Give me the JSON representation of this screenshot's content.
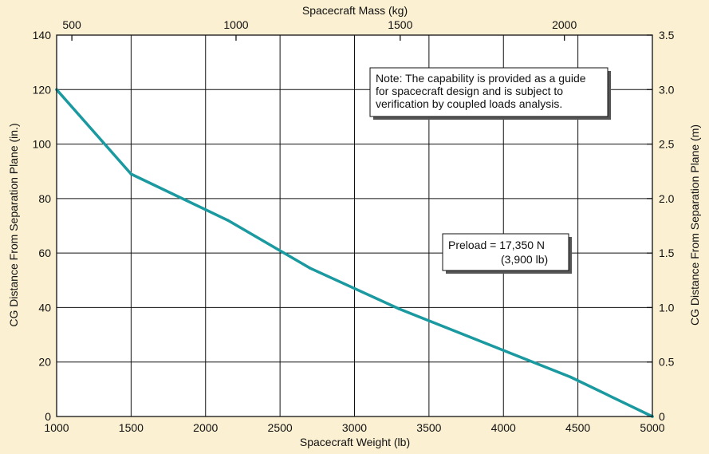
{
  "colors": {
    "background": "#fbf0d2",
    "plot_background": "#ffffff",
    "grid": "#111111",
    "series": "#1a9aa0"
  },
  "chart_data": {
    "type": "line",
    "xlabel": "Spacecraft Weight (lb)",
    "ylabel": "CG Distance From Separation Plane (in.)",
    "xlim": [
      1000,
      5000
    ],
    "ylim": [
      0,
      140
    ],
    "x_ticks": [
      1000,
      1500,
      2000,
      2500,
      3000,
      3500,
      4000,
      4500,
      5000
    ],
    "x_tick_labels": [
      "1000",
      "1500",
      "2000",
      "2500",
      "3000",
      "3500",
      "4000",
      "4500",
      "5000"
    ],
    "y_ticks": [
      0,
      20,
      40,
      60,
      80,
      100,
      120,
      140
    ],
    "y_tick_labels": [
      "0",
      "20",
      "40",
      "60",
      "80",
      "100",
      "120",
      "140"
    ],
    "x2label": "Spacecraft Mass (kg)",
    "x2_ticks": [
      500,
      1000,
      1500,
      2000
    ],
    "x2_tick_labels": [
      "500",
      "1000",
      "1500",
      "2000"
    ],
    "y2label": "CG Distance From Separation Plane (m)",
    "y2_ticks": [
      0,
      0.5,
      1.0,
      1.5,
      2.0,
      2.5,
      3.0,
      3.5
    ],
    "y2_tick_labels": [
      "0",
      "0.5",
      "1.0",
      "1.5",
      "2.0",
      "2.5",
      "3.0",
      "3.5"
    ],
    "grid": true,
    "series": [
      {
        "x": [
          1000,
          1500,
          2150,
          2700,
          3300,
          4450,
          5000
        ],
        "y": [
          120,
          89,
          72,
          54.5,
          39.5,
          14.5,
          0
        ]
      }
    ],
    "annotations": [
      {
        "id": "note",
        "lines": [
          "Note: The capability is provided as a guide",
          "for spacecraft design and is subject to",
          "verification by coupled loads analysis."
        ]
      },
      {
        "id": "preload",
        "lines": [
          "Preload = 17,350 N",
          "(3,900 lb)"
        ]
      }
    ]
  }
}
